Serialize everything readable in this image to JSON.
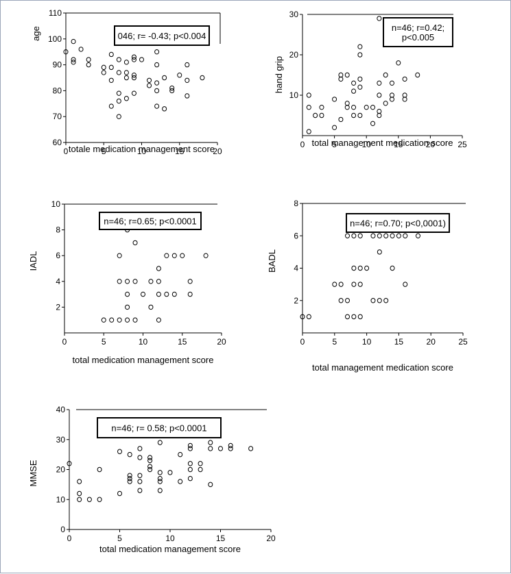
{
  "chart_data": [
    {
      "type": "scatter",
      "xlabel": "totale medication management score",
      "ylabel": "age",
      "xlim": [
        0,
        20
      ],
      "ylim": [
        60,
        110
      ],
      "xticks": [
        0,
        5,
        10,
        15,
        20
      ],
      "yticks": [
        60,
        70,
        80,
        90,
        100,
        110
      ],
      "annotation": [
        "046; r= -0.43; p<0.004"
      ],
      "points": [
        [
          0,
          95
        ],
        [
          1,
          99
        ],
        [
          1,
          92
        ],
        [
          1,
          91
        ],
        [
          2,
          96
        ],
        [
          3,
          92
        ],
        [
          3,
          90
        ],
        [
          5,
          89
        ],
        [
          5,
          87
        ],
        [
          6,
          94
        ],
        [
          6,
          89
        ],
        [
          6,
          84
        ],
        [
          6,
          74
        ],
        [
          7,
          92
        ],
        [
          7,
          87
        ],
        [
          7,
          79
        ],
        [
          7,
          76
        ],
        [
          7,
          70
        ],
        [
          8,
          91
        ],
        [
          8,
          87
        ],
        [
          8,
          85
        ],
        [
          8,
          77
        ],
        [
          9,
          93
        ],
        [
          9,
          92
        ],
        [
          9,
          86
        ],
        [
          9,
          85
        ],
        [
          9,
          79
        ],
        [
          10,
          92
        ],
        [
          11,
          84
        ],
        [
          11,
          82
        ],
        [
          12,
          95
        ],
        [
          12,
          90
        ],
        [
          12,
          83
        ],
        [
          12,
          80
        ],
        [
          12,
          74
        ],
        [
          13,
          85
        ],
        [
          13,
          73
        ],
        [
          14,
          81
        ],
        [
          14,
          80
        ],
        [
          15,
          86
        ],
        [
          16,
          90
        ],
        [
          16,
          84
        ],
        [
          16,
          78
        ],
        [
          18,
          85
        ]
      ]
    },
    {
      "type": "scatter",
      "xlabel": "total management medication  score",
      "ylabel": "hand grip",
      "xlim": [
        0,
        25
      ],
      "ylim": [
        0,
        30
      ],
      "xticks": [
        0,
        5,
        10,
        15,
        20,
        25
      ],
      "yticks": [
        10,
        20,
        30
      ],
      "annotation": [
        "n=46; r=0.42;",
        "p<0.005"
      ],
      "points": [
        [
          1,
          10
        ],
        [
          1,
          7
        ],
        [
          1,
          1
        ],
        [
          2,
          5
        ],
        [
          3,
          7
        ],
        [
          3,
          5
        ],
        [
          5,
          9
        ],
        [
          5,
          2
        ],
        [
          6,
          15
        ],
        [
          6,
          14
        ],
        [
          6,
          4
        ],
        [
          7,
          15
        ],
        [
          7,
          8
        ],
        [
          7,
          7
        ],
        [
          8,
          13
        ],
        [
          8,
          11
        ],
        [
          8,
          7
        ],
        [
          8,
          5
        ],
        [
          9,
          22
        ],
        [
          9,
          20
        ],
        [
          9,
          14
        ],
        [
          9,
          12
        ],
        [
          9,
          5
        ],
        [
          10,
          7
        ],
        [
          11,
          7
        ],
        [
          11,
          3
        ],
        [
          12,
          29
        ],
        [
          12,
          13
        ],
        [
          12,
          10
        ],
        [
          12,
          6
        ],
        [
          12,
          5
        ],
        [
          13,
          15
        ],
        [
          13,
          8
        ],
        [
          14,
          13
        ],
        [
          14,
          10
        ],
        [
          14,
          9
        ],
        [
          15,
          18
        ],
        [
          16,
          14
        ],
        [
          16,
          10
        ],
        [
          16,
          9
        ],
        [
          18,
          15
        ]
      ]
    },
    {
      "type": "scatter",
      "xlabel": "total medication management score",
      "ylabel": "IADL",
      "xlim": [
        0,
        20
      ],
      "ylim": [
        0,
        10
      ],
      "xticks": [
        0,
        5,
        10,
        15,
        20
      ],
      "yticks": [
        2,
        4,
        6,
        8,
        10
      ],
      "annotation": [
        "n=46; r=0.65; p<0.0001"
      ],
      "points": [
        [
          5,
          1
        ],
        [
          6,
          1
        ],
        [
          7,
          6
        ],
        [
          7,
          4
        ],
        [
          7,
          1
        ],
        [
          8,
          8
        ],
        [
          8,
          4
        ],
        [
          8,
          3
        ],
        [
          8,
          2
        ],
        [
          8,
          1
        ],
        [
          9,
          7
        ],
        [
          9,
          4
        ],
        [
          9,
          1
        ],
        [
          10,
          3
        ],
        [
          11,
          4
        ],
        [
          11,
          2
        ],
        [
          12,
          5
        ],
        [
          12,
          4
        ],
        [
          12,
          3
        ],
        [
          12,
          1
        ],
        [
          13,
          6
        ],
        [
          13,
          3
        ],
        [
          14,
          6
        ],
        [
          14,
          3
        ],
        [
          15,
          6
        ],
        [
          16,
          4
        ],
        [
          16,
          3
        ],
        [
          18,
          6
        ]
      ]
    },
    {
      "type": "scatter",
      "xlabel": "total management medication  score",
      "ylabel": "BADL",
      "xlim": [
        0,
        25
      ],
      "ylim": [
        0,
        8
      ],
      "xticks": [
        0,
        5,
        10,
        15,
        20,
        25
      ],
      "yticks": [
        2,
        4,
        6,
        8
      ],
      "annotation": [
        "n=46; r=0.70; p<0,0001)"
      ],
      "points": [
        [
          0,
          1
        ],
        [
          1,
          1
        ],
        [
          5,
          3
        ],
        [
          6,
          3
        ],
        [
          6,
          2
        ],
        [
          7,
          6
        ],
        [
          7,
          2
        ],
        [
          7,
          1
        ],
        [
          8,
          6
        ],
        [
          8,
          4
        ],
        [
          8,
          3
        ],
        [
          8,
          1
        ],
        [
          9,
          6
        ],
        [
          9,
          4
        ],
        [
          9,
          3
        ],
        [
          9,
          1
        ],
        [
          10,
          4
        ],
        [
          11,
          6
        ],
        [
          11,
          2
        ],
        [
          12,
          6
        ],
        [
          12,
          5
        ],
        [
          12,
          2
        ],
        [
          13,
          6
        ],
        [
          13,
          2
        ],
        [
          14,
          6
        ],
        [
          14,
          4
        ],
        [
          15,
          6
        ],
        [
          16,
          6
        ],
        [
          16,
          3
        ],
        [
          18,
          6
        ]
      ]
    },
    {
      "type": "scatter",
      "xlabel": "total medication management  score",
      "ylabel": "MMSE",
      "xlim": [
        0,
        20
      ],
      "ylim": [
        0,
        40
      ],
      "xticks": [
        0,
        5,
        10,
        15,
        20
      ],
      "yticks": [
        0,
        10,
        20,
        30,
        40
      ],
      "annotation": [
        "n=46; r= 0.58; p<0.0001"
      ],
      "points": [
        [
          0,
          22
        ],
        [
          1,
          16
        ],
        [
          1,
          12
        ],
        [
          1,
          10
        ],
        [
          2,
          10
        ],
        [
          3,
          20
        ],
        [
          3,
          10
        ],
        [
          5,
          26
        ],
        [
          5,
          12
        ],
        [
          6,
          25
        ],
        [
          6,
          18
        ],
        [
          6,
          17
        ],
        [
          6,
          16
        ],
        [
          7,
          27
        ],
        [
          7,
          24
        ],
        [
          7,
          18
        ],
        [
          7,
          16
        ],
        [
          7,
          13
        ],
        [
          8,
          24
        ],
        [
          8,
          23
        ],
        [
          8,
          21
        ],
        [
          8,
          20
        ],
        [
          9,
          29
        ],
        [
          9,
          19
        ],
        [
          9,
          17
        ],
        [
          9,
          16
        ],
        [
          9,
          13
        ],
        [
          10,
          19
        ],
        [
          11,
          25
        ],
        [
          11,
          16
        ],
        [
          12,
          28
        ],
        [
          12,
          27
        ],
        [
          12,
          22
        ],
        [
          12,
          20
        ],
        [
          12,
          17
        ],
        [
          13,
          22
        ],
        [
          13,
          20
        ],
        [
          14,
          29
        ],
        [
          14,
          27
        ],
        [
          14,
          15
        ],
        [
          15,
          27
        ],
        [
          16,
          28
        ],
        [
          16,
          27
        ],
        [
          18,
          27
        ]
      ]
    }
  ]
}
